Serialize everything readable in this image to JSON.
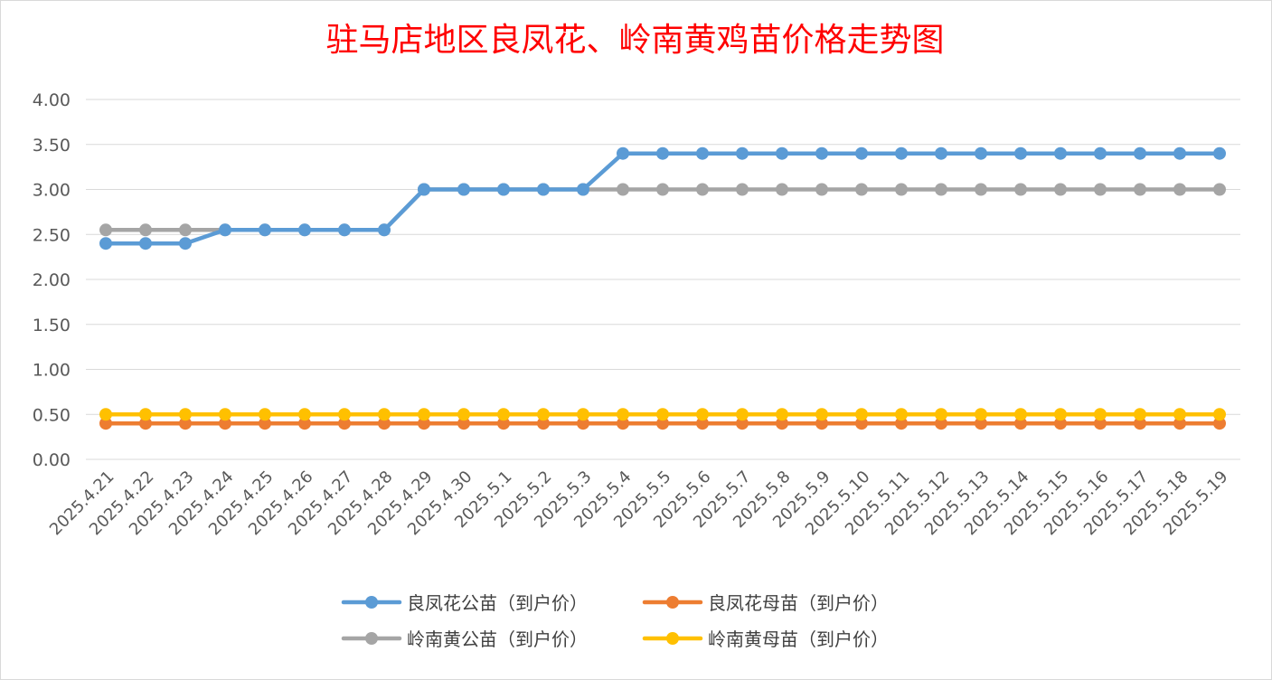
{
  "chart_data": {
    "type": "line",
    "title": "驻马店地区良凤花、岭南黄鸡苗价格走势图",
    "xlabel": "",
    "ylabel": "",
    "ylim": [
      0,
      4
    ],
    "yticks": [
      "0.00",
      "0.50",
      "1.00",
      "1.50",
      "2.00",
      "2.50",
      "3.00",
      "3.50",
      "4.00"
    ],
    "grid": "horizontal",
    "legend_position": "bottom",
    "categories": [
      "2025.4.21",
      "2025.4.22",
      "2025.4.23",
      "2025.4.24",
      "2025.4.25",
      "2025.4.26",
      "2025.4.27",
      "2025.4.28",
      "2025.4.29",
      "2025.4.30",
      "2025.5.1",
      "2025.5.2",
      "2025.5.3",
      "2025.5.4",
      "2025.5.5",
      "2025.5.6",
      "2025.5.7",
      "2025.5.8",
      "2025.5.9",
      "2025.5.10",
      "2025.5.11",
      "2025.5.12",
      "2025.5.13",
      "2025.5.14",
      "2025.5.15",
      "2025.5.16",
      "2025.5.17",
      "2025.5.18",
      "2025.5.19"
    ],
    "series": [
      {
        "name": "良凤花公苗（到户价）",
        "color": "#5b9bd5",
        "values": [
          2.4,
          2.4,
          2.4,
          2.55,
          2.55,
          2.55,
          2.55,
          2.55,
          3.0,
          3.0,
          3.0,
          3.0,
          3.0,
          3.4,
          3.4,
          3.4,
          3.4,
          3.4,
          3.4,
          3.4,
          3.4,
          3.4,
          3.4,
          3.4,
          3.4,
          3.4,
          3.4,
          3.4,
          3.4
        ]
      },
      {
        "name": "良凤花母苗（到户价）",
        "color": "#ed7d31",
        "values": [
          0.4,
          0.4,
          0.4,
          0.4,
          0.4,
          0.4,
          0.4,
          0.4,
          0.4,
          0.4,
          0.4,
          0.4,
          0.4,
          0.4,
          0.4,
          0.4,
          0.4,
          0.4,
          0.4,
          0.4,
          0.4,
          0.4,
          0.4,
          0.4,
          0.4,
          0.4,
          0.4,
          0.4,
          0.4
        ]
      },
      {
        "name": "岭南黄公苗（到户价）",
        "color": "#a5a5a5",
        "values": [
          2.55,
          2.55,
          2.55,
          2.55,
          2.55,
          2.55,
          2.55,
          2.55,
          3.0,
          3.0,
          3.0,
          3.0,
          3.0,
          3.0,
          3.0,
          3.0,
          3.0,
          3.0,
          3.0,
          3.0,
          3.0,
          3.0,
          3.0,
          3.0,
          3.0,
          3.0,
          3.0,
          3.0,
          3.0
        ]
      },
      {
        "name": "岭南黄母苗（到户价）",
        "color": "#ffc000",
        "values": [
          0.5,
          0.5,
          0.5,
          0.5,
          0.5,
          0.5,
          0.5,
          0.5,
          0.5,
          0.5,
          0.5,
          0.5,
          0.5,
          0.5,
          0.5,
          0.5,
          0.5,
          0.5,
          0.5,
          0.5,
          0.5,
          0.5,
          0.5,
          0.5,
          0.5,
          0.5,
          0.5,
          0.5,
          0.5
        ]
      }
    ]
  }
}
